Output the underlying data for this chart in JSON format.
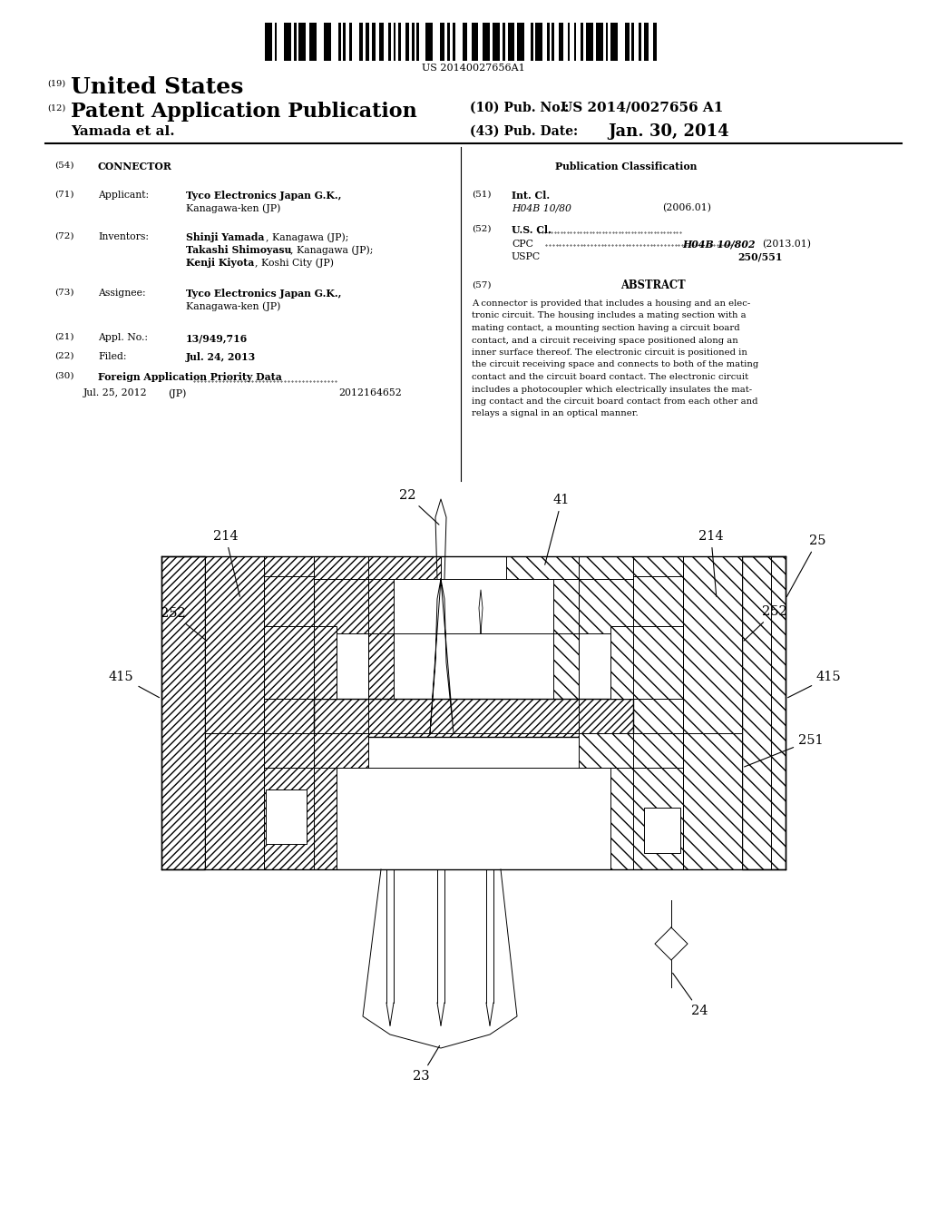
{
  "bg_color": "#ffffff",
  "page_width": 10.24,
  "page_height": 13.2,
  "barcode_text": "US 20140027656A1",
  "title_19": "(19)",
  "title_country": "United States",
  "title_12": "(12)",
  "title_pub": "Patent Application Publication",
  "title_10": "(10) Pub. No.:",
  "title_10b": "US 2014/0027656 A1",
  "title_author": "Yamada et al.",
  "title_43": "(43) Pub. Date:",
  "title_date": "Jan. 30, 2014",
  "field_54_label": "(54)",
  "field_54_val": "CONNECTOR",
  "pub_class_title": "Publication Classification",
  "field_71_label": "(71)",
  "field_71_key": "Applicant:",
  "field_71_val1": "Tyco Electronics Japan G.K.,",
  "field_71_val2": "Kanagawa-ken (JP)",
  "field_72_label": "(72)",
  "field_72_key": "Inventors:",
  "field_72_val1a": "Shinji Yamada",
  "field_72_val1b": ", Kanagawa (JP);",
  "field_72_val2a": "Takashi Shimoyasu",
  "field_72_val2b": ", Kanagawa (JP);",
  "field_72_val3a": "Kenji Kiyota",
  "field_72_val3b": ", Koshi City (JP)",
  "field_73_label": "(73)",
  "field_73_key": "Assignee:",
  "field_73_val1": "Tyco Electronics Japan G.K.,",
  "field_73_val2": "Kanagawa-ken (JP)",
  "field_21_label": "(21)",
  "field_21_key": "Appl. No.:",
  "field_21_val": "13/949,716",
  "field_22_label": "(22)",
  "field_22_key": "Filed:",
  "field_22_val": "Jul. 24, 2013",
  "field_30_label": "(30)",
  "field_30_val": "Foreign Application Priority Data",
  "field_30_date": "Jul. 25, 2012",
  "field_30_country": "(JP)",
  "field_30_num": "2012164652",
  "field_51_label": "(51)",
  "field_51_key": "Int. Cl.",
  "field_51_class": "H04B 10/80",
  "field_51_year": "(2006.01)",
  "field_52_label": "(52)",
  "field_52_key": "U.S. Cl.",
  "field_52_cpc_label": "CPC",
  "field_52_cpc_val": "H04B 10/802",
  "field_52_cpc_year": "(2013.01)",
  "field_52_uspc_label": "USPC",
  "field_52_uspc_val": "250/551",
  "field_57_label": "(57)",
  "field_57_key": "ABSTRACT",
  "abstract_lines": [
    "A connector is provided that includes a housing and an elec-",
    "tronic circuit. The housing includes a mating section with a",
    "mating contact, a mounting section having a circuit board",
    "contact, and a circuit receiving space positioned along an",
    "inner surface thereof. The electronic circuit is positioned in",
    "the circuit receiving space and connects to both of the mating",
    "contact and the circuit board contact. The electronic circuit",
    "includes a photocoupler which electrically insulates the mat-",
    "ing contact and the circuit board contact from each other and",
    "relays a signal in an optical manner."
  ]
}
